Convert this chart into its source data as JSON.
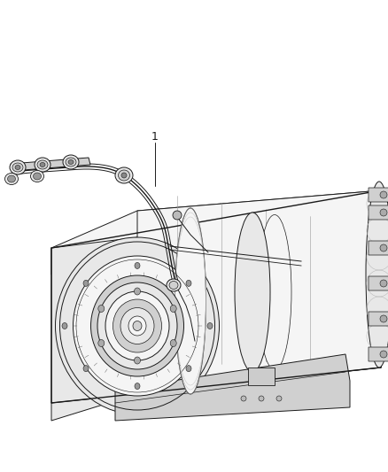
{
  "background_color": "#ffffff",
  "line_color": "#1a1a1a",
  "dark_line": "#111111",
  "mid_gray": "#888888",
  "light_gray": "#cccccc",
  "fill_light": "#f5f5f5",
  "fill_mid": "#e8e8e8",
  "fill_dark": "#d0d0d0",
  "label_number": "1",
  "fig_width": 4.38,
  "fig_height": 5.33,
  "dpi": 100
}
